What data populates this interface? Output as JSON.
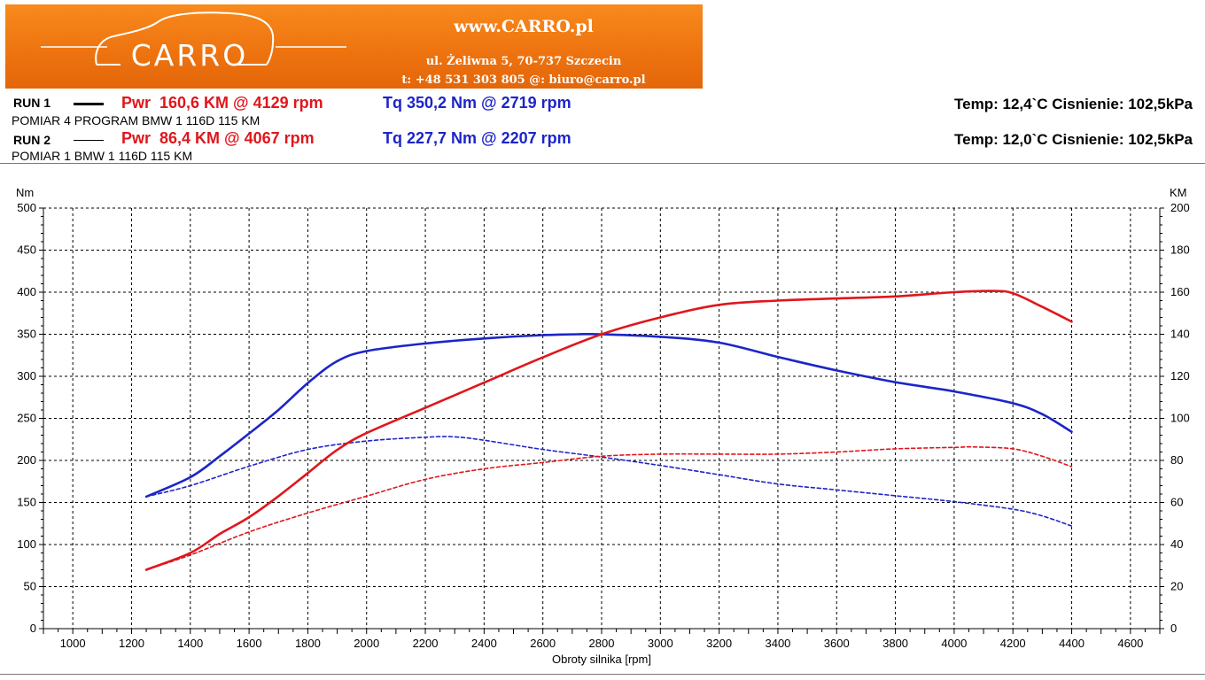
{
  "header": {
    "logo_text": "CARRO",
    "site": "www.CARRO.pl",
    "address": "ul. Żeliwna 5, 70-737 Szczecin",
    "contact": "t: +48 531 303 805   @: biuro@carro.pl",
    "brand_color": "#ef7512"
  },
  "runs": [
    {
      "label": "RUN 1",
      "pwr": "Pwr  160,6 KM @ 4129 rpm",
      "tq": "Tq 350,2 Nm @ 2719 rpm",
      "description": "POMIAR 4 PROGRAM BMW 1 116D 115 KM",
      "conditions": "Temp: 12,4`C   Cisnienie: 102,5kPa"
    },
    {
      "label": "RUN 2",
      "pwr": "Pwr  86,4 KM @ 4067 rpm",
      "tq": "Tq 227,7 Nm @ 2207 rpm",
      "description": "POMIAR 1 BMW 1 116D 115 KM",
      "conditions": "Temp: 12,0`C   Cisnienie: 102,5kPa"
    }
  ],
  "colors": {
    "power": "#e0161c",
    "torque": "#1c25c8"
  },
  "chart_data": {
    "type": "line",
    "xlabel": "Obroty silnika [rpm]",
    "ylabel_left": "Nm",
    "ylabel_right": "KM",
    "xlim": [
      900,
      4700
    ],
    "ylim_left": [
      0,
      500
    ],
    "ylim_right": [
      0,
      200
    ],
    "x_ticks": [
      1000,
      1200,
      1400,
      1600,
      1800,
      2000,
      2200,
      2400,
      2600,
      2800,
      3000,
      3200,
      3400,
      3600,
      3800,
      4000,
      4200,
      4400,
      4600
    ],
    "y_ticks_left": [
      0,
      50,
      100,
      150,
      200,
      250,
      300,
      350,
      400,
      450,
      500
    ],
    "y_ticks_right": [
      0,
      20,
      40,
      60,
      80,
      100,
      120,
      140,
      160,
      180,
      200
    ],
    "grid": true,
    "series": [
      {
        "name": "RUN 1 Tq",
        "axis": "left",
        "color": "#1c25c8",
        "style": "solid",
        "points": [
          [
            1250,
            157
          ],
          [
            1400,
            180
          ],
          [
            1500,
            205
          ],
          [
            1600,
            232
          ],
          [
            1700,
            260
          ],
          [
            1800,
            292
          ],
          [
            1900,
            318
          ],
          [
            2000,
            330
          ],
          [
            2200,
            339
          ],
          [
            2400,
            345
          ],
          [
            2600,
            349
          ],
          [
            2719,
            350
          ],
          [
            2800,
            350
          ],
          [
            3000,
            347
          ],
          [
            3200,
            340
          ],
          [
            3400,
            323
          ],
          [
            3600,
            307
          ],
          [
            3800,
            293
          ],
          [
            4000,
            282
          ],
          [
            4200,
            268
          ],
          [
            4300,
            255
          ],
          [
            4400,
            234
          ]
        ]
      },
      {
        "name": "RUN 1 Pwr",
        "axis": "right",
        "color": "#e0161c",
        "style": "solid",
        "points": [
          [
            1250,
            28
          ],
          [
            1400,
            36
          ],
          [
            1500,
            45
          ],
          [
            1600,
            53
          ],
          [
            1700,
            63
          ],
          [
            1800,
            74
          ],
          [
            1900,
            85
          ],
          [
            2000,
            93
          ],
          [
            2200,
            105
          ],
          [
            2400,
            117
          ],
          [
            2600,
            129
          ],
          [
            2800,
            140
          ],
          [
            3000,
            148
          ],
          [
            3200,
            154
          ],
          [
            3400,
            156
          ],
          [
            3600,
            157
          ],
          [
            3800,
            158
          ],
          [
            4000,
            160
          ],
          [
            4129,
            160.6
          ],
          [
            4200,
            159.5
          ],
          [
            4300,
            153
          ],
          [
            4400,
            146
          ]
        ]
      },
      {
        "name": "RUN 2 Tq",
        "axis": "left",
        "color": "#1c25c8",
        "style": "dashed",
        "points": [
          [
            1250,
            157
          ],
          [
            1400,
            170
          ],
          [
            1600,
            193
          ],
          [
            1800,
            213
          ],
          [
            2000,
            223
          ],
          [
            2207,
            227.7
          ],
          [
            2300,
            228
          ],
          [
            2400,
            224
          ],
          [
            2600,
            213
          ],
          [
            2800,
            204
          ],
          [
            3000,
            194
          ],
          [
            3200,
            183
          ],
          [
            3400,
            172
          ],
          [
            3600,
            165
          ],
          [
            3800,
            158
          ],
          [
            4000,
            151
          ],
          [
            4200,
            142
          ],
          [
            4300,
            134
          ],
          [
            4400,
            122
          ]
        ]
      },
      {
        "name": "RUN 2 Pwr",
        "axis": "right",
        "color": "#e0161c",
        "style": "dashed",
        "points": [
          [
            1250,
            28
          ],
          [
            1400,
            35
          ],
          [
            1600,
            46
          ],
          [
            1800,
            55
          ],
          [
            2000,
            63
          ],
          [
            2200,
            71
          ],
          [
            2400,
            76
          ],
          [
            2600,
            79
          ],
          [
            2800,
            82
          ],
          [
            3000,
            83
          ],
          [
            3200,
            83
          ],
          [
            3400,
            83
          ],
          [
            3600,
            84
          ],
          [
            3800,
            85.5
          ],
          [
            4000,
            86.2
          ],
          [
            4067,
            86.4
          ],
          [
            4200,
            85.5
          ],
          [
            4300,
            82
          ],
          [
            4400,
            77
          ]
        ]
      }
    ]
  }
}
